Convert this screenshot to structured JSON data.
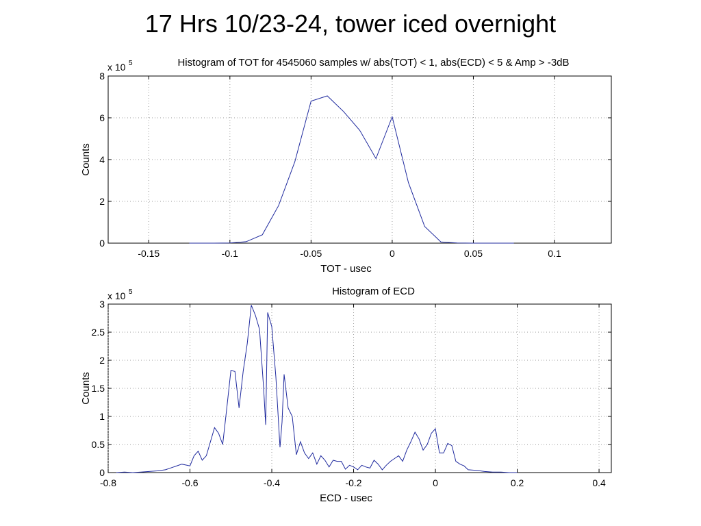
{
  "slide": {
    "title": "17 Hrs 10/23-24, tower iced overnight"
  },
  "chart_data": [
    {
      "type": "line",
      "title": "Histogram of TOT for 4545060 samples w/ abs(TOT) < 1, abs(ECD) < 5 & Amp > -3dB",
      "xlabel": "TOT -  usec",
      "ylabel": "Counts",
      "exponent_label": {
        "base": "x 10",
        "power": "5"
      },
      "xlim": [
        -0.175,
        0.135
      ],
      "ylim": [
        0,
        8
      ],
      "xticks": [
        -0.15,
        -0.1,
        -0.05,
        0,
        0.05,
        0.1
      ],
      "xtick_labels": [
        "-0.15",
        "-0.1",
        "-0.05",
        "0",
        "0.05",
        "0.1"
      ],
      "yticks": [
        0,
        2,
        4,
        6,
        8
      ],
      "ytick_labels": [
        "0",
        "2",
        "4",
        "6",
        "8"
      ],
      "grid": true,
      "series": [
        {
          "color": "#1f2a9e",
          "x": [
            -0.125,
            -0.11,
            -0.1,
            -0.09,
            -0.08,
            -0.07,
            -0.06,
            -0.05,
            -0.04,
            -0.03,
            -0.02,
            -0.01,
            0,
            0.01,
            0.02,
            0.03,
            0.04,
            0.05,
            0.06,
            0.07,
            0.075
          ],
          "y": [
            0,
            0,
            0.01,
            0.07,
            0.4,
            1.8,
            3.9,
            6.8,
            7.05,
            6.3,
            5.4,
            4.05,
            6.05,
            2.9,
            0.8,
            0.06,
            0.01,
            0,
            0,
            0,
            0
          ]
        }
      ]
    },
    {
      "type": "line",
      "title": "Histogram of ECD",
      "xlabel": "ECD -  usec",
      "ylabel": "Counts",
      "exponent_label": {
        "base": "x 10",
        "power": "5"
      },
      "xlim": [
        -0.8,
        0.43
      ],
      "ylim": [
        0,
        3
      ],
      "xticks": [
        -0.8,
        -0.6,
        -0.4,
        -0.2,
        0,
        0.2,
        0.4
      ],
      "xtick_labels": [
        "-0.8",
        "-0.6",
        "-0.4",
        "-0.2",
        "0",
        "0.2",
        "0.4"
      ],
      "yticks": [
        0,
        0.5,
        1,
        1.5,
        2,
        2.5,
        3
      ],
      "ytick_labels": [
        "0",
        "0.5",
        "1",
        "1.5",
        "2",
        "2.5",
        "3"
      ],
      "grid": true,
      "series": [
        {
          "color": "#1f2a9e",
          "x": [
            -0.78,
            -0.76,
            -0.74,
            -0.72,
            -0.7,
            -0.68,
            -0.66,
            -0.64,
            -0.62,
            -0.6,
            -0.59,
            -0.58,
            -0.57,
            -0.56,
            -0.55,
            -0.54,
            -0.53,
            -0.52,
            -0.51,
            -0.5,
            -0.49,
            -0.48,
            -0.47,
            -0.46,
            -0.45,
            -0.44,
            -0.43,
            -0.42,
            -0.415,
            -0.41,
            -0.4,
            -0.39,
            -0.38,
            -0.375,
            -0.37,
            -0.36,
            -0.35,
            -0.34,
            -0.33,
            -0.32,
            -0.31,
            -0.3,
            -0.29,
            -0.28,
            -0.27,
            -0.26,
            -0.25,
            -0.24,
            -0.23,
            -0.22,
            -0.21,
            -0.2,
            -0.19,
            -0.18,
            -0.17,
            -0.16,
            -0.15,
            -0.14,
            -0.13,
            -0.12,
            -0.11,
            -0.1,
            -0.09,
            -0.08,
            -0.07,
            -0.06,
            -0.05,
            -0.04,
            -0.03,
            -0.02,
            -0.01,
            0,
            0.01,
            0.02,
            0.03,
            0.04,
            0.05,
            0.06,
            0.07,
            0.08,
            0.1,
            0.12,
            0.14,
            0.16,
            0.18,
            0.2
          ],
          "y": [
            0,
            0.01,
            0,
            0.01,
            0.02,
            0.03,
            0.05,
            0.1,
            0.15,
            0.12,
            0.3,
            0.38,
            0.22,
            0.3,
            0.55,
            0.8,
            0.7,
            0.5,
            1.15,
            1.82,
            1.8,
            1.15,
            1.8,
            2.3,
            2.98,
            2.8,
            2.55,
            1.5,
            0.85,
            2.85,
            2.6,
            1.7,
            0.45,
            0.9,
            1.75,
            1.15,
            1.0,
            0.32,
            0.55,
            0.35,
            0.25,
            0.35,
            0.15,
            0.3,
            0.22,
            0.1,
            0.22,
            0.2,
            0.2,
            0.06,
            0.13,
            0.1,
            0.05,
            0.13,
            0.1,
            0.08,
            0.22,
            0.15,
            0.05,
            0.13,
            0.2,
            0.25,
            0.3,
            0.2,
            0.4,
            0.55,
            0.72,
            0.6,
            0.4,
            0.5,
            0.7,
            0.78,
            0.35,
            0.35,
            0.52,
            0.48,
            0.2,
            0.15,
            0.12,
            0.05,
            0.04,
            0.02,
            0.01,
            0.01,
            0,
            0
          ]
        }
      ]
    }
  ]
}
